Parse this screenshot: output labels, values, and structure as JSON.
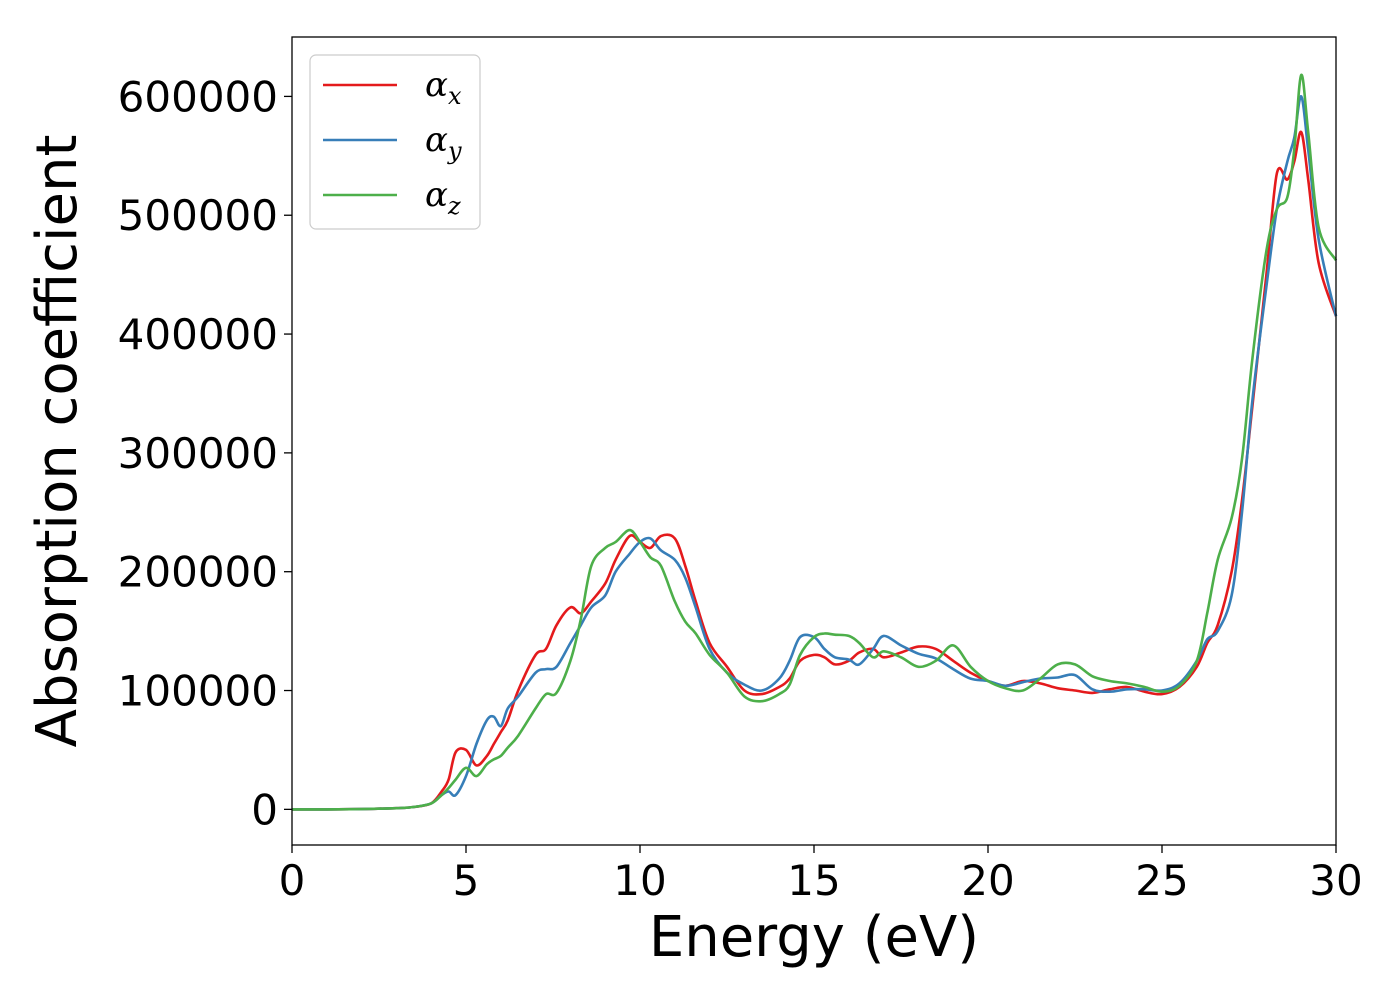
{
  "chart_data": {
    "type": "line",
    "title": "",
    "xlabel": "Energy (eV)",
    "ylabel": "Absorption coefficient",
    "xlim": [
      0,
      30
    ],
    "ylim": [
      -30000,
      650000
    ],
    "xticks": [
      0,
      5,
      10,
      15,
      20,
      25,
      30
    ],
    "yticks": [
      0,
      100000,
      200000,
      300000,
      400000,
      500000,
      600000
    ],
    "grid": false,
    "legend_position": "top-left",
    "x": [
      0,
      1,
      2,
      3,
      3.5,
      4,
      4.3,
      4.5,
      4.7,
      5,
      5.3,
      5.6,
      5.8,
      6,
      6.2,
      6.5,
      7,
      7.3,
      7.6,
      8,
      8.3,
      8.6,
      9,
      9.3,
      9.7,
      10,
      10.3,
      10.6,
      11,
      11.3,
      11.6,
      12,
      12.5,
      13,
      13.5,
      14,
      14.3,
      14.6,
      15,
      15.3,
      15.6,
      16,
      16.3,
      16.7,
      17,
      17.5,
      18,
      18.5,
      19,
      19.5,
      20,
      20.5,
      21,
      21.5,
      22,
      22.5,
      23,
      23.5,
      24,
      24.5,
      25,
      25.5,
      26,
      26.3,
      26.6,
      27,
      27.3,
      27.6,
      28,
      28.3,
      28.6,
      28.8,
      29,
      29.2,
      29.5,
      30
    ],
    "series": [
      {
        "name": "α",
        "subscript": "x",
        "color": "#e41a1c",
        "values": [
          0,
          0,
          200,
          1000,
          2000,
          5000,
          15000,
          25000,
          48000,
          50000,
          37000,
          45000,
          55000,
          65000,
          75000,
          100000,
          130000,
          135000,
          155000,
          170000,
          165000,
          175000,
          190000,
          210000,
          230000,
          225000,
          220000,
          230000,
          228000,
          205000,
          175000,
          140000,
          120000,
          100000,
          97000,
          103000,
          110000,
          125000,
          130000,
          128000,
          122000,
          125000,
          132000,
          135000,
          128000,
          132000,
          137000,
          135000,
          125000,
          115000,
          108000,
          104000,
          108000,
          106000,
          102000,
          100000,
          98000,
          101000,
          103000,
          99000,
          97000,
          103000,
          120000,
          140000,
          155000,
          200000,
          260000,
          340000,
          450000,
          535000,
          530000,
          545000,
          570000,
          530000,
          460000,
          415000
        ]
      },
      {
        "name": "α",
        "subscript": "y",
        "color": "#377eb8",
        "values": [
          0,
          0,
          200,
          1000,
          2000,
          5000,
          12000,
          15000,
          12000,
          28000,
          55000,
          75000,
          78000,
          70000,
          85000,
          95000,
          115000,
          118000,
          120000,
          140000,
          155000,
          170000,
          180000,
          200000,
          215000,
          225000,
          228000,
          218000,
          210000,
          195000,
          170000,
          135000,
          115000,
          105000,
          100000,
          110000,
          125000,
          145000,
          145000,
          135000,
          128000,
          126000,
          122000,
          135000,
          146000,
          138000,
          131000,
          127000,
          118000,
          110000,
          108000,
          104000,
          107000,
          110000,
          111000,
          113000,
          101000,
          99000,
          101000,
          101000,
          100000,
          106000,
          125000,
          143000,
          150000,
          180000,
          250000,
          345000,
          440000,
          505000,
          545000,
          565000,
          600000,
          555000,
          480000,
          415000
        ]
      },
      {
        "name": "α",
        "subscript": "z",
        "color": "#4daf4a",
        "values": [
          0,
          0,
          200,
          1000,
          2000,
          5000,
          12000,
          18000,
          25000,
          35000,
          28000,
          38000,
          42000,
          45000,
          52000,
          62000,
          85000,
          97000,
          98000,
          125000,
          160000,
          205000,
          220000,
          225000,
          235000,
          225000,
          212000,
          205000,
          175000,
          158000,
          148000,
          130000,
          115000,
          95000,
          91000,
          97000,
          105000,
          130000,
          145000,
          148000,
          147000,
          146000,
          140000,
          128000,
          133000,
          128000,
          120000,
          125000,
          138000,
          120000,
          108000,
          102000,
          100000,
          110000,
          122000,
          122000,
          112000,
          108000,
          106000,
          103000,
          99000,
          104000,
          125000,
          165000,
          210000,
          245000,
          295000,
          380000,
          470000,
          505000,
          515000,
          555000,
          618000,
          570000,
          490000,
          462000
        ]
      }
    ]
  }
}
